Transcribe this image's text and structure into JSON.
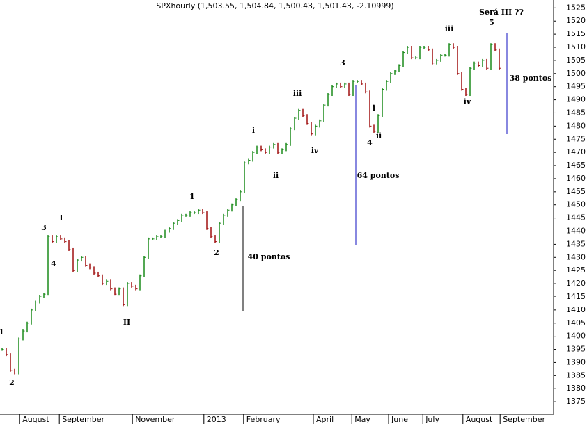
{
  "chart_data": {
    "type": "price-bars",
    "title": "SPXhourly (1,503.55, 1,504.84, 1,500.43, 1,501.43, -2.10999)",
    "close": [
      1395,
      1393,
      1387,
      1386,
      1399,
      1402,
      1405,
      1410,
      1413,
      1415,
      1416,
      1438,
      1436,
      1438,
      1437,
      1436,
      1433,
      1425,
      1429,
      1430,
      1427,
      1426,
      1424,
      1423,
      1420,
      1421,
      1418,
      1416,
      1418,
      1412,
      1420,
      1419,
      1418,
      1423,
      1430,
      1437,
      1437,
      1438,
      1438,
      1440,
      1441,
      1443,
      1444,
      1446,
      1446,
      1447,
      1447,
      1448,
      1447,
      1441,
      1438,
      1436,
      1443,
      1446,
      1448,
      1450,
      1452,
      1455,
      1466,
      1467,
      1470,
      1472,
      1471,
      1470,
      1472,
      1473,
      1470,
      1471,
      1473,
      1479,
      1483,
      1486,
      1484,
      1481,
      1477,
      1480,
      1482,
      1488,
      1492,
      1495,
      1496,
      1495,
      1496,
      1492,
      1497,
      1497,
      1496,
      1493,
      1480,
      1478,
      1484,
      1494,
      1497,
      1500,
      1501,
      1503,
      1508,
      1510,
      1506,
      1506,
      1510,
      1510,
      1509,
      1504,
      1505,
      1507,
      1507,
      1511,
      1510,
      1500,
      1494,
      1492,
      1502,
      1504,
      1503,
      1505,
      1502,
      1511,
      1509,
      1502
    ],
    "up_color": "#1a8a1a",
    "down_color": "#a01010",
    "xlim": [
      0,
      132.5
    ],
    "xticks": [
      {
        "value": 4.7,
        "label": "August"
      },
      {
        "value": 14.2,
        "label": "September"
      },
      {
        "value": 31.7,
        "label": "November"
      },
      {
        "value": 48.8,
        "label": "2013"
      },
      {
        "value": 58.3,
        "label": "February"
      },
      {
        "value": 75,
        "label": "April"
      },
      {
        "value": 84.2,
        "label": "May"
      },
      {
        "value": 93,
        "label": "June"
      },
      {
        "value": 101.2,
        "label": "July"
      },
      {
        "value": 110.8,
        "label": "August"
      },
      {
        "value": 119.7,
        "label": "September"
      }
    ],
    "ylim": [
      1370,
      1528
    ],
    "yticks": [
      1375,
      1380,
      1385,
      1390,
      1395,
      1400,
      1405,
      1410,
      1415,
      1420,
      1425,
      1430,
      1435,
      1440,
      1445,
      1450,
      1455,
      1460,
      1465,
      1470,
      1475,
      1480,
      1485,
      1490,
      1495,
      1500,
      1505,
      1510,
      1515,
      1520,
      1525
    ],
    "annotations": [
      "1",
      "2",
      "3",
      "I",
      "4",
      "II",
      "1",
      "2",
      "40 pontos",
      "i",
      "ii",
      "iii",
      "iv",
      "3",
      "64 pontos",
      "i",
      "ii",
      "4",
      "iii",
      "5",
      "Será III ??",
      "iv",
      "38 pontos"
    ]
  }
}
